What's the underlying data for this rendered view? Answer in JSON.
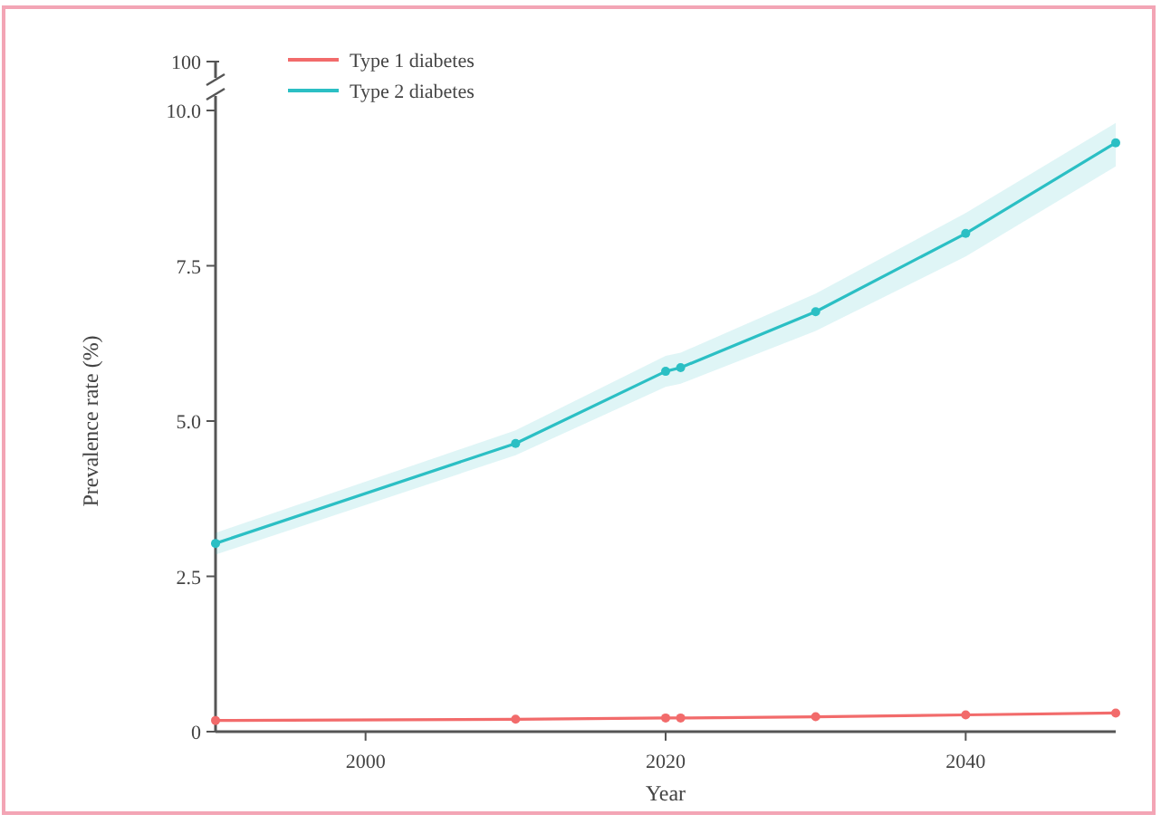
{
  "chart_data": {
    "type": "line",
    "xlabel": "Year",
    "ylabel": "Prevalence rate (%)",
    "xlim": [
      1990,
      2050
    ],
    "xticks": [
      2000,
      2020,
      2040
    ],
    "ylim": [
      0,
      10
    ],
    "yticks": [
      0,
      2.5,
      {
        "value": 5,
        "label": "5.0"
      },
      7.5,
      {
        "value": 10,
        "label": "10.0"
      }
    ],
    "annotations": [
      "100"
    ],
    "x": [
      1990,
      2010,
      2020,
      2021,
      2030,
      2040,
      2050
    ],
    "series": [
      {
        "name": "Type 1 diabetes",
        "color": "#f26b6b",
        "values": [
          0.18,
          0.2,
          0.22,
          0.22,
          0.24,
          0.27,
          0.3
        ]
      },
      {
        "name": "Type 2 diabetes",
        "color": "#2bbfc4",
        "values": [
          3.03,
          4.64,
          5.8,
          5.86,
          6.76,
          8.02,
          9.48
        ],
        "lower": [
          2.85,
          4.45,
          5.55,
          5.6,
          6.45,
          7.65,
          9.1
        ],
        "upper": [
          3.2,
          4.85,
          6.05,
          6.1,
          7.05,
          8.35,
          9.8
        ]
      }
    ],
    "marker": "circle",
    "line_style": "solid",
    "legend": "top left",
    "grid": false
  }
}
